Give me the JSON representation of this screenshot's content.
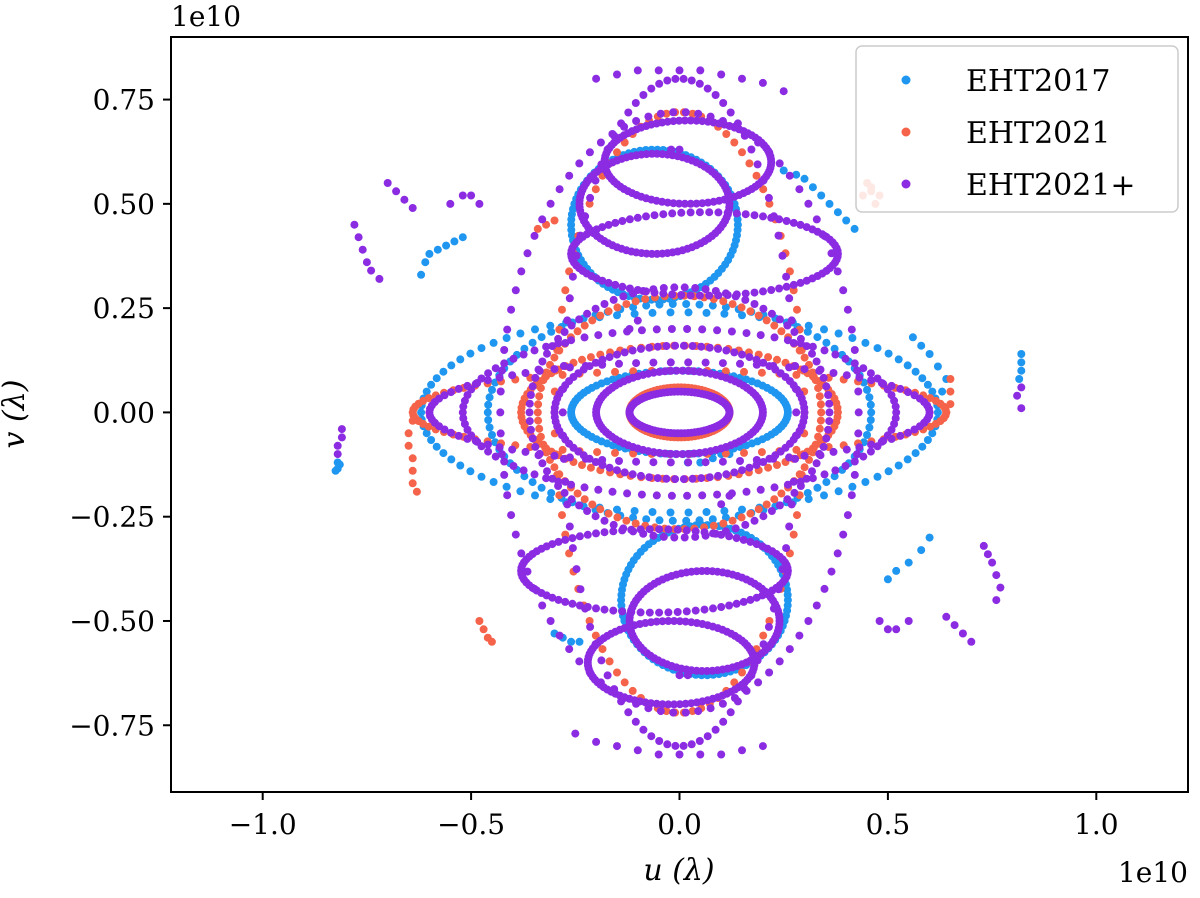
{
  "chart_data": {
    "type": "scatter",
    "xlabel": "u (λ)",
    "ylabel": "v (λ)",
    "x_offset_label": "1e10",
    "y_offset_label": "1e10",
    "xlim": [
      -1.22,
      1.22
    ],
    "ylim": [
      -0.91,
      0.9
    ],
    "x_ticks": [
      -1.0,
      -0.5,
      0.0,
      0.5,
      1.0
    ],
    "x_tick_labels": [
      "−1.0",
      "−0.5",
      "0.0",
      "0.5",
      "1.0"
    ],
    "y_ticks": [
      0.75,
      0.5,
      0.25,
      0.0,
      -0.25,
      -0.5,
      -0.75
    ],
    "y_tick_labels": [
      "0.75",
      "0.50",
      "0.25",
      "0.00",
      "−0.25",
      "−0.50",
      "−0.75"
    ],
    "grid": false,
    "legend_position": "top-right",
    "series": [
      {
        "name": "EHT2017",
        "color": "#1f96f0",
        "tracks": [
          {
            "center": [
              0.0,
              0.0
            ],
            "radius": [
              0.46,
              0.26
            ],
            "arc": [
              0,
              360
            ]
          },
          {
            "center": [
              0.06,
              -0.45
            ],
            "radius": [
              0.2,
              0.18
            ],
            "arc": [
              0,
              360
            ]
          },
          {
            "center": [
              -0.06,
              0.45
            ],
            "radius": [
              0.2,
              0.18
            ],
            "arc": [
              0,
              360
            ]
          },
          {
            "center": [
              0.0,
              0.0
            ],
            "radius": [
              0.62,
              0.24
            ],
            "arc": [
              0,
              360
            ]
          },
          {
            "center": [
              0.0,
              0.0
            ],
            "radius": [
              0.26,
              0.1
            ],
            "arc": [
              0,
              360
            ]
          }
        ],
        "points": [
          [
            -0.82,
            -0.12
          ],
          [
            -0.815,
            -0.125
          ],
          [
            -0.82,
            -0.135
          ],
          [
            -0.825,
            -0.14
          ],
          [
            -0.62,
            0.33
          ],
          [
            -0.61,
            0.36
          ],
          [
            -0.6,
            0.38
          ],
          [
            -0.58,
            0.39
          ],
          [
            -0.56,
            0.4
          ],
          [
            -0.54,
            0.41
          ],
          [
            -0.52,
            0.42
          ],
          [
            0.82,
            0.14
          ],
          [
            0.82,
            0.12
          ],
          [
            0.82,
            0.1
          ],
          [
            0.815,
            0.08
          ],
          [
            0.6,
            -0.3
          ],
          [
            0.58,
            -0.33
          ],
          [
            0.55,
            -0.36
          ],
          [
            0.52,
            -0.38
          ],
          [
            0.5,
            -0.4
          ],
          [
            -0.3,
            -0.53
          ],
          [
            -0.28,
            -0.54
          ],
          [
            -0.26,
            -0.55
          ],
          [
            -0.24,
            -0.55
          ],
          [
            0.25,
            0.58
          ],
          [
            0.28,
            0.57
          ],
          [
            0.3,
            0.56
          ],
          [
            0.32,
            0.54
          ],
          [
            0.34,
            0.52
          ],
          [
            0.36,
            0.5
          ],
          [
            0.38,
            0.48
          ],
          [
            0.4,
            0.46
          ],
          [
            0.42,
            0.44
          ],
          [
            0.02,
            -0.12
          ],
          [
            0.05,
            -0.12
          ],
          [
            0.08,
            -0.11
          ],
          [
            0.1,
            -0.1
          ],
          [
            0.12,
            -0.1
          ],
          [
            0.62,
            0.02
          ],
          [
            0.63,
            0.05
          ],
          [
            0.64,
            0.08
          ],
          [
            0.62,
            0.11
          ],
          [
            0.6,
            0.14
          ],
          [
            0.58,
            0.16
          ],
          [
            0.56,
            0.18
          ]
        ]
      },
      {
        "name": "EHT2021",
        "color": "#f4634a",
        "tracks": [
          {
            "center": [
              0.0,
              0.0
            ],
            "radius": [
              0.3,
              0.72
            ],
            "arc": [
              0,
              360
            ]
          },
          {
            "center": [
              0.0,
              0.0
            ],
            "radius": [
              0.38,
              0.16
            ],
            "arc": [
              0,
              360
            ]
          },
          {
            "center": [
              0.0,
              0.0
            ],
            "radius": [
              0.34,
              0.28
            ],
            "arc": [
              0,
              360
            ]
          },
          {
            "center": [
              0.0,
              0.0
            ],
            "radius": [
              0.64,
              0.1
            ],
            "arc": [
              0,
              360
            ]
          },
          {
            "center": [
              0.0,
              0.0
            ],
            "radius": [
              0.12,
              0.06
            ],
            "arc": [
              0,
              360
            ]
          }
        ],
        "points": [
          [
            -0.64,
            -0.02
          ],
          [
            -0.65,
            -0.05
          ],
          [
            -0.65,
            -0.08
          ],
          [
            -0.64,
            -0.11
          ],
          [
            -0.64,
            -0.14
          ],
          [
            -0.64,
            -0.17
          ],
          [
            -0.63,
            -0.19
          ],
          [
            0.65,
            0.08
          ],
          [
            0.65,
            0.05
          ],
          [
            0.65,
            0.02
          ],
          [
            0.64,
            0.0
          ],
          [
            -0.48,
            -0.5
          ],
          [
            -0.47,
            -0.52
          ],
          [
            -0.46,
            -0.54
          ],
          [
            -0.45,
            -0.55
          ],
          [
            0.44,
            0.52
          ],
          [
            0.46,
            0.53
          ],
          [
            0.48,
            0.52
          ],
          [
            0.47,
            0.5
          ],
          [
            0.46,
            0.54
          ],
          [
            0.45,
            0.55
          ],
          [
            -0.34,
            0.44
          ],
          [
            -0.32,
            0.45
          ],
          [
            -0.3,
            0.46
          ]
        ]
      },
      {
        "name": "EHT2021+",
        "color": "#8b2be2",
        "tracks": [
          {
            "center": [
              0.0,
              0.0
            ],
            "radius": [
              0.28,
              0.8
            ],
            "arc": [
              0,
              360
            ]
          },
          {
            "center": [
              0.0,
              0.0
            ],
            "radius": [
              0.43,
              0.72
            ],
            "arc": [
              0,
              360
            ]
          },
          {
            "center": [
              0.0,
              0.0
            ],
            "radius": [
              0.36,
              0.3
            ],
            "arc": [
              0,
              360
            ]
          },
          {
            "center": [
              0.0,
              0.0
            ],
            "radius": [
              0.52,
              0.2
            ],
            "arc": [
              0,
              360
            ]
          },
          {
            "center": [
              0.0,
              0.0
            ],
            "radius": [
              0.6,
              0.12
            ],
            "arc": [
              0,
              360
            ]
          },
          {
            "center": [
              0.0,
              0.0
            ],
            "radius": [
              0.3,
              0.16
            ],
            "arc": [
              0,
              360
            ]
          },
          {
            "center": [
              0.0,
              0.0
            ],
            "radius": [
              0.2,
              0.1
            ],
            "arc": [
              0,
              360
            ]
          },
          {
            "center": [
              0.0,
              0.0
            ],
            "radius": [
              0.12,
              0.05
            ],
            "arc": [
              0,
              360
            ]
          },
          {
            "center": [
              0.02,
              0.6
            ],
            "radius": [
              0.2,
              0.1
            ],
            "arc": [
              0,
              360
            ]
          },
          {
            "center": [
              -0.02,
              -0.6
            ],
            "radius": [
              0.2,
              0.1
            ],
            "arc": [
              0,
              360
            ]
          },
          {
            "center": [
              0.06,
              0.38
            ],
            "radius": [
              0.32,
              0.1
            ],
            "arc": [
              0,
              360
            ]
          },
          {
            "center": [
              -0.06,
              -0.38
            ],
            "radius": [
              0.32,
              0.1
            ],
            "arc": [
              0,
              360
            ]
          },
          {
            "center": [
              0.06,
              -0.5
            ],
            "radius": [
              0.18,
              0.12
            ],
            "arc": [
              0,
              360
            ]
          },
          {
            "center": [
              -0.06,
              0.5
            ],
            "radius": [
              0.18,
              0.12
            ],
            "arc": [
              0,
              360
            ]
          }
        ],
        "points": [
          [
            -0.78,
            0.45
          ],
          [
            -0.77,
            0.42
          ],
          [
            -0.76,
            0.39
          ],
          [
            -0.75,
            0.36
          ],
          [
            -0.74,
            0.34
          ],
          [
            -0.72,
            0.32
          ],
          [
            -0.7,
            0.55
          ],
          [
            -0.68,
            0.53
          ],
          [
            -0.66,
            0.51
          ],
          [
            -0.64,
            0.49
          ],
          [
            0.76,
            -0.45
          ],
          [
            0.77,
            -0.42
          ],
          [
            0.76,
            -0.39
          ],
          [
            0.75,
            -0.36
          ],
          [
            0.74,
            -0.34
          ],
          [
            0.73,
            -0.32
          ],
          [
            0.7,
            -0.55
          ],
          [
            0.68,
            -0.53
          ],
          [
            0.66,
            -0.51
          ],
          [
            0.64,
            -0.49
          ],
          [
            -0.81,
            -0.04
          ],
          [
            -0.81,
            -0.06
          ],
          [
            -0.82,
            -0.08
          ],
          [
            -0.82,
            -0.1
          ],
          [
            0.81,
            0.04
          ],
          [
            0.82,
            0.06
          ],
          [
            0.82,
            0.01
          ],
          [
            -0.55,
            0.5
          ],
          [
            -0.52,
            0.52
          ],
          [
            -0.5,
            0.52
          ],
          [
            -0.48,
            0.5
          ],
          [
            0.55,
            -0.5
          ],
          [
            0.52,
            -0.52
          ],
          [
            0.5,
            -0.52
          ],
          [
            0.48,
            -0.5
          ],
          [
            -0.2,
            0.8
          ],
          [
            -0.15,
            0.81
          ],
          [
            -0.1,
            0.82
          ],
          [
            -0.05,
            0.82
          ],
          [
            0.0,
            0.82
          ],
          [
            0.05,
            0.82
          ],
          [
            0.1,
            0.81
          ],
          [
            0.15,
            0.8
          ],
          [
            0.2,
            0.79
          ],
          [
            0.25,
            0.77
          ],
          [
            0.2,
            -0.8
          ],
          [
            0.15,
            -0.81
          ],
          [
            0.1,
            -0.82
          ],
          [
            0.05,
            -0.82
          ],
          [
            0.0,
            -0.82
          ],
          [
            -0.05,
            -0.82
          ],
          [
            -0.1,
            -0.81
          ],
          [
            -0.15,
            -0.8
          ],
          [
            -0.2,
            -0.79
          ],
          [
            -0.25,
            -0.77
          ],
          [
            -0.12,
            0.2
          ],
          [
            -0.1,
            0.22
          ],
          [
            0.12,
            -0.2
          ],
          [
            0.1,
            -0.22
          ],
          [
            -0.02,
            0.63
          ],
          [
            0.0,
            0.63
          ],
          [
            0.02,
            -0.63
          ],
          [
            0.0,
            -0.63
          ]
        ]
      }
    ]
  }
}
